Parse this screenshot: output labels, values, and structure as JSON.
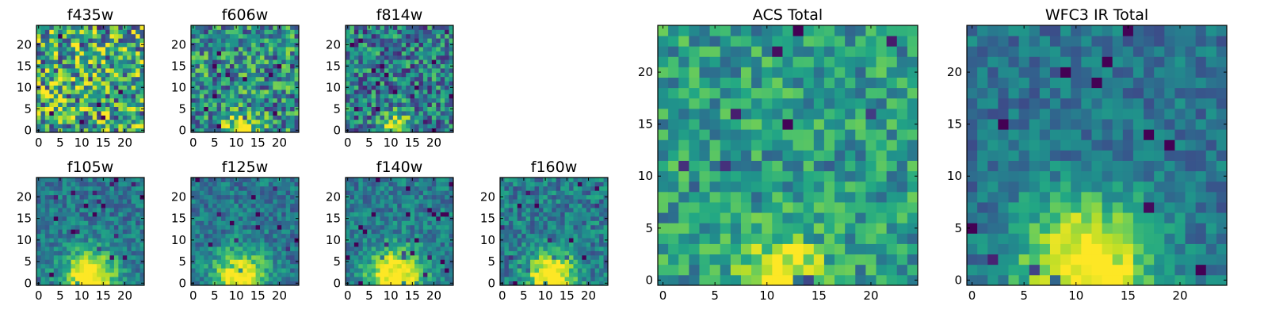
{
  "figure": {
    "type": "heatmap",
    "colormap": "viridis",
    "grid": false
  },
  "chart_data": [
    {
      "type": "heatmap",
      "title": "f435w",
      "grid_size": 25,
      "xlim": [
        0,
        24
      ],
      "ylim": [
        0,
        24
      ],
      "xticks": [
        0,
        5,
        10,
        15,
        20
      ],
      "yticks": [
        0,
        5,
        10,
        15,
        20
      ],
      "pattern": "uniform-noise",
      "seed": 11,
      "noise": 0.9,
      "peak": 0.0,
      "bg": 0.6,
      "center": [
        11,
        1
      ],
      "sigma": 5
    },
    {
      "type": "heatmap",
      "title": "f606w",
      "grid_size": 25,
      "xlim": [
        0,
        24
      ],
      "ylim": [
        0,
        24
      ],
      "xticks": [
        0,
        5,
        10,
        15,
        20
      ],
      "yticks": [
        0,
        5,
        10,
        15,
        20
      ],
      "pattern": "noise-with-bottom-source",
      "seed": 23,
      "noise": 0.7,
      "peak": 0.55,
      "bg": 0.5,
      "center": [
        11,
        0.5
      ],
      "sigma": 2.6
    },
    {
      "type": "heatmap",
      "title": "f814w",
      "grid_size": 25,
      "xlim": [
        0,
        24
      ],
      "ylim": [
        0,
        24
      ],
      "xticks": [
        0,
        5,
        10,
        15,
        20
      ],
      "yticks": [
        0,
        5,
        10,
        15,
        20
      ],
      "pattern": "noise-with-bottom-source",
      "seed": 37,
      "noise": 0.65,
      "peak": 0.6,
      "bg": 0.42,
      "center": [
        11.5,
        0.5
      ],
      "sigma": 2.4
    },
    {
      "type": "heatmap",
      "title": "f105w",
      "grid_size": 25,
      "xlim": [
        0,
        24
      ],
      "ylim": [
        0,
        24
      ],
      "xticks": [
        0,
        5,
        10,
        15,
        20
      ],
      "yticks": [
        0,
        5,
        10,
        15,
        20
      ],
      "pattern": "extended-bottom-source",
      "seed": 41,
      "noise": 0.35,
      "peak": 0.75,
      "bg": 0.4,
      "center": [
        12,
        1.5
      ],
      "sigma": 4.2
    },
    {
      "type": "heatmap",
      "title": "f125w",
      "grid_size": 25,
      "xlim": [
        0,
        24
      ],
      "ylim": [
        0,
        24
      ],
      "xticks": [
        0,
        5,
        10,
        15,
        20
      ],
      "yticks": [
        0,
        5,
        10,
        15,
        20
      ],
      "pattern": "extended-bottom-source",
      "seed": 53,
      "noise": 0.35,
      "peak": 0.7,
      "bg": 0.4,
      "center": [
        11,
        1.5
      ],
      "sigma": 4.2
    },
    {
      "type": "heatmap",
      "title": "f140w",
      "grid_size": 25,
      "xlim": [
        0,
        24
      ],
      "ylim": [
        0,
        24
      ],
      "xticks": [
        0,
        5,
        10,
        15,
        20
      ],
      "yticks": [
        0,
        5,
        10,
        15,
        20
      ],
      "pattern": "extended-bottom-source",
      "seed": 67,
      "noise": 0.35,
      "peak": 0.72,
      "bg": 0.42,
      "center": [
        11,
        1.5
      ],
      "sigma": 4.4
    },
    {
      "type": "heatmap",
      "title": "f160w",
      "grid_size": 25,
      "xlim": [
        0,
        24
      ],
      "ylim": [
        0,
        24
      ],
      "xticks": [
        0,
        5,
        10,
        15,
        20
      ],
      "yticks": [
        0,
        5,
        10,
        15,
        20
      ],
      "pattern": "extended-bottom-source",
      "seed": 79,
      "noise": 0.4,
      "peak": 0.75,
      "bg": 0.42,
      "center": [
        11.5,
        1.5
      ],
      "sigma": 3.8
    },
    {
      "type": "heatmap",
      "title": "ACS Total",
      "grid_size": 25,
      "xlim": [
        0,
        24
      ],
      "ylim": [
        0,
        24
      ],
      "xticks": [
        0,
        5,
        10,
        15,
        20
      ],
      "yticks": [
        0,
        5,
        10,
        15,
        20
      ],
      "pattern": "noise-with-bottom-source",
      "seed": 97,
      "noise": 0.45,
      "peak": 0.55,
      "bg": 0.55,
      "center": [
        11.5,
        0.5
      ],
      "sigma": 2.6
    },
    {
      "type": "heatmap",
      "title": "WFC3 IR Total",
      "grid_size": 25,
      "xlim": [
        0,
        24
      ],
      "ylim": [
        0,
        24
      ],
      "xticks": [
        0,
        5,
        10,
        15,
        20
      ],
      "yticks": [
        0,
        5,
        10,
        15,
        20
      ],
      "pattern": "extended-bottom-source",
      "seed": 113,
      "noise": 0.3,
      "peak": 0.72,
      "bg": 0.38,
      "center": [
        11,
        1.5
      ],
      "sigma": 4.5
    }
  ]
}
